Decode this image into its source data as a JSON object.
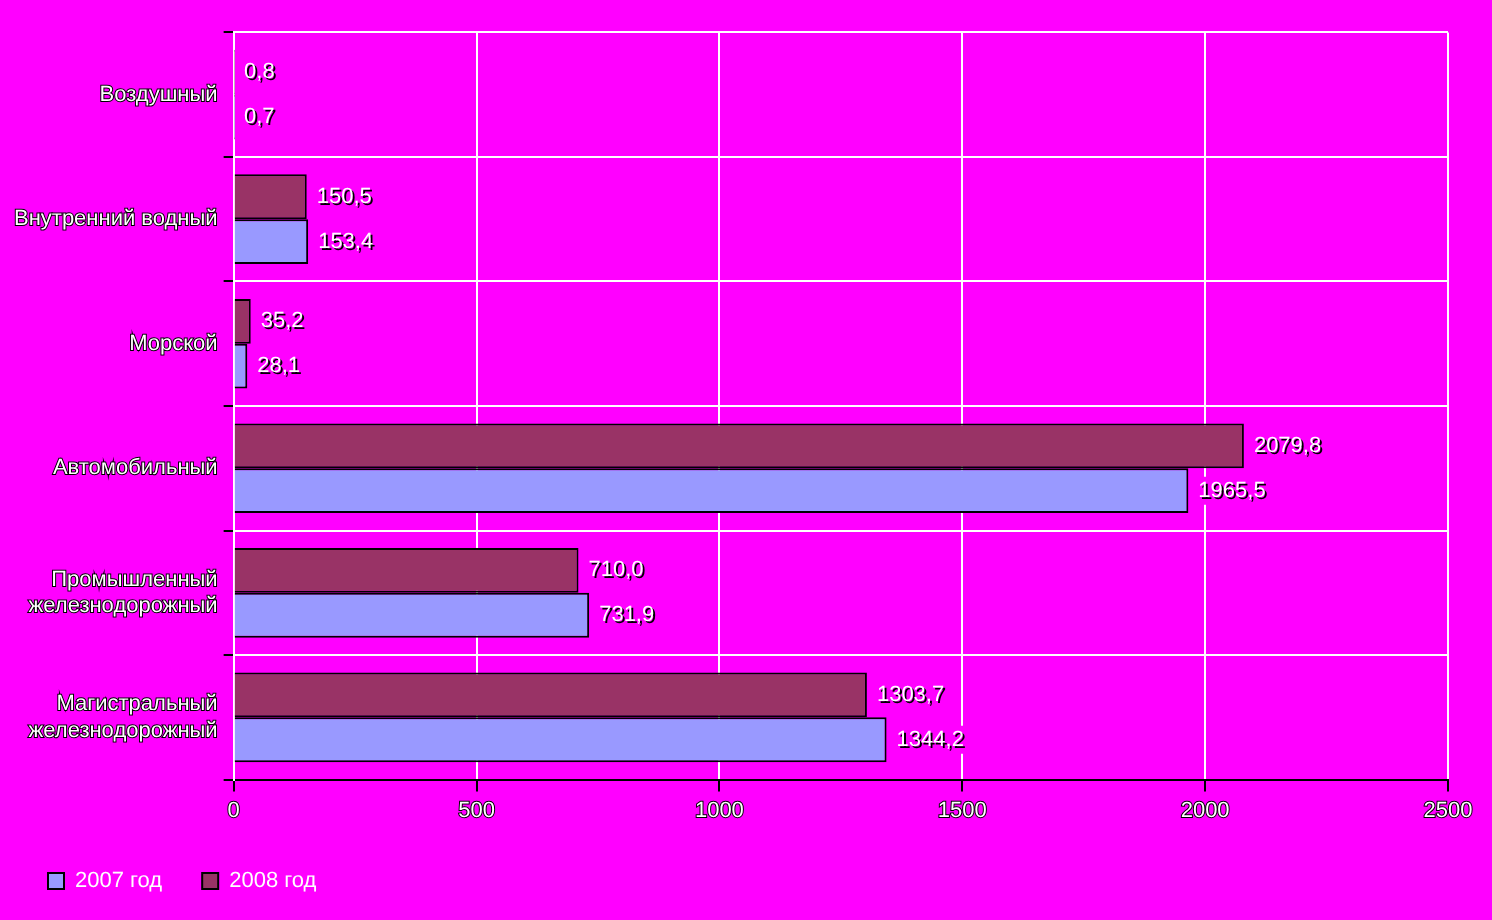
{
  "chart_data": {
    "type": "bar",
    "orientation": "horizontal",
    "categories": [
      "Воздушный",
      "Внутренний водный",
      "Морской",
      "Автомобильный",
      "Промышленный железнодорожный",
      "Магистральный железнодорожный"
    ],
    "series": [
      {
        "name": "2007 год",
        "color": "#9999ff",
        "values": [
          0.7,
          153.4,
          28.1,
          1965.5,
          731.9,
          1344.2
        ],
        "value_labels": [
          "0,7",
          "153,4",
          "28,1",
          "1965,5",
          "731,9",
          "1344,2"
        ]
      },
      {
        "name": "2008 год",
        "color": "#993366",
        "values": [
          0.8,
          150.5,
          35.2,
          2079.8,
          710.0,
          1303.7
        ],
        "value_labels": [
          "0,8",
          "150,5",
          "35,2",
          "2079,8",
          "710,0",
          "1303,7"
        ]
      }
    ],
    "xlim": [
      0,
      2500
    ],
    "xticks": [
      0,
      500,
      1000,
      1500,
      2000,
      2500
    ],
    "grid": true,
    "legend": "bottom"
  }
}
